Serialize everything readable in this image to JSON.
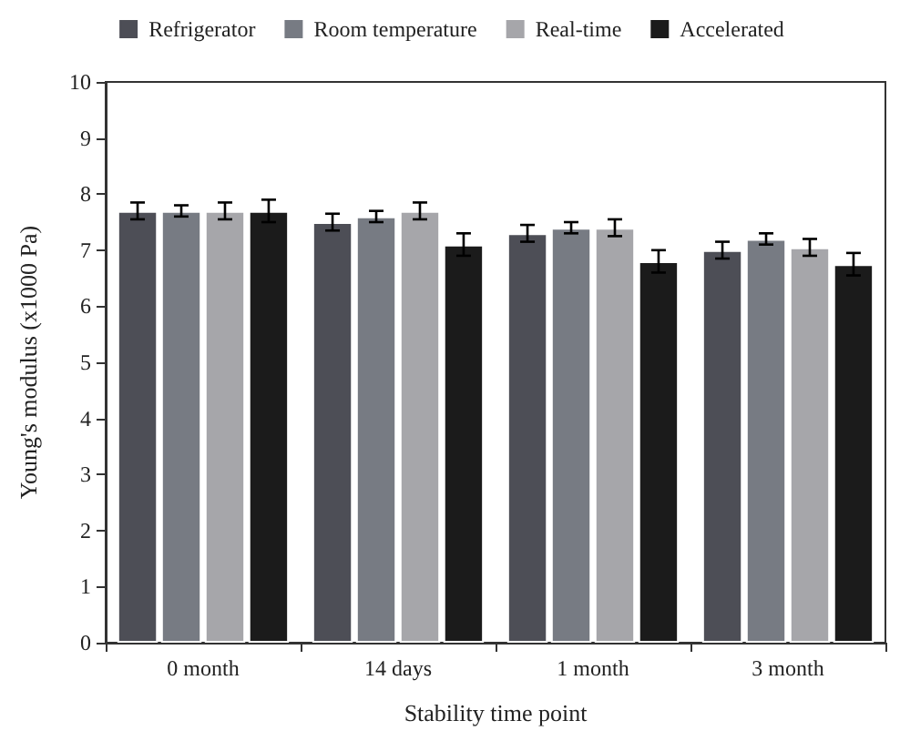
{
  "chart_data": {
    "type": "bar",
    "xlabel": "Stability time point",
    "ylabel": "Young's modulus (x1000 Pa)",
    "categories": [
      "0 month",
      "14 days",
      "1 month",
      "3 month"
    ],
    "series": [
      {
        "name": "Refrigerator",
        "color": "#4d4e56",
        "values": [
          7.7,
          7.5,
          7.3,
          7.0
        ],
        "errors": [
          0.15,
          0.15,
          0.15,
          0.15
        ]
      },
      {
        "name": "Room temperature",
        "color": "#777b83",
        "values": [
          7.7,
          7.6,
          7.4,
          7.2
        ],
        "errors": [
          0.1,
          0.1,
          0.1,
          0.1
        ]
      },
      {
        "name": "Real-time",
        "color": "#a6a6aa",
        "values": [
          7.7,
          7.7,
          7.4,
          7.05
        ],
        "errors": [
          0.15,
          0.15,
          0.15,
          0.15
        ]
      },
      {
        "name": "Accelerated",
        "color": "#1b1b1b",
        "values": [
          7.7,
          7.1,
          6.8,
          6.75
        ],
        "errors": [
          0.2,
          0.2,
          0.2,
          0.2
        ]
      }
    ],
    "ylim": [
      0,
      10
    ],
    "yticks": [
      0,
      1,
      2,
      3,
      4,
      5,
      6,
      7,
      8,
      9,
      10
    ],
    "grid": false,
    "legend": "top"
  }
}
